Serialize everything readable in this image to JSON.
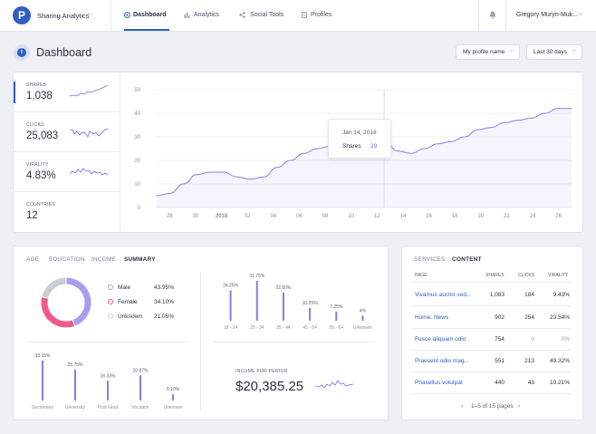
{
  "topbar": {
    "app_name": "Sharing Analytics",
    "nav": [
      {
        "label": "Dashboard",
        "active": true
      },
      {
        "label": "Analytics",
        "active": false
      },
      {
        "label": "Social Tools",
        "active": false
      },
      {
        "label": "Profiles",
        "active": false
      }
    ],
    "user_name": "Gregory Muryn-Muk..."
  },
  "header": {
    "title": "Dashboard",
    "profile_select": "My profile name",
    "range_select": "Last 30 days"
  },
  "stats": [
    {
      "label": "SHARES",
      "value": "1,038"
    },
    {
      "label": "CLICKS",
      "value": "25,083"
    },
    {
      "label": "VIRALITY",
      "value": "4.83%"
    },
    {
      "label": "COUNTRIES",
      "value": "12"
    }
  ],
  "chart_data": [
    {
      "type": "area",
      "series": [
        {
          "name": "Shares",
          "values": [
            5,
            6,
            10,
            14,
            15,
            15,
            13,
            12,
            13,
            17,
            20,
            23,
            25,
            26,
            28,
            24,
            25,
            29,
            24,
            23,
            25,
            27,
            28,
            30,
            33,
            34,
            36,
            37,
            38,
            40,
            42,
            42
          ]
        }
      ],
      "ylim": [
        0,
        50
      ],
      "yticks": [
        "0",
        "10",
        "20",
        "30",
        "40",
        "50"
      ],
      "xticks": [
        "28",
        "30",
        "2018",
        "02",
        "04",
        "06",
        "08",
        "10",
        "12",
        "14",
        "16",
        "18",
        "20",
        "22",
        "24",
        "26"
      ],
      "tooltip": {
        "date": "Jan 14, 2018",
        "label": "Shares",
        "value": "29"
      }
    },
    {
      "type": "pie",
      "title": "",
      "labels": [
        "Male",
        "Female",
        "Unknown"
      ],
      "values": [
        43.95,
        34.1,
        21.05
      ],
      "pct_labels": [
        "43.95%",
        "34.10%",
        "21.05%"
      ],
      "colors": [
        "#a99df0",
        "#ee5a8c",
        "#c9cdd6"
      ]
    },
    {
      "type": "bar",
      "categories": [
        "18 - 24",
        "25 - 34",
        "35 - 44",
        "45 - 54",
        "55 - 64",
        "Unknown"
      ],
      "values": [
        24.25,
        31.75,
        22.5,
        10.25,
        7.25,
        4
      ],
      "labels": [
        "24.25%",
        "31.75%",
        "22.50%",
        "10.25%",
        "7.25%",
        "4%"
      ]
    },
    {
      "type": "bar",
      "categories": [
        "Secondary",
        "University",
        "Post Grad",
        "Vocation",
        "Unknown"
      ],
      "values": [
        33.15,
        25.75,
        16.33,
        20.87,
        5.1
      ],
      "labels": [
        "33.15%",
        "25.75%",
        "16.33%",
        "20.87%",
        "5.10%"
      ]
    }
  ],
  "demographics": {
    "tabs": [
      {
        "label": "AGE",
        "active": false
      },
      {
        "label": "EDUCATION",
        "active": false
      },
      {
        "label": "INCOME",
        "active": false
      },
      {
        "label": "SUMMARY",
        "active": true
      }
    ],
    "income_label": "INCOME FOR PERIOD",
    "income_value": "$20,385.25"
  },
  "table": {
    "tabs": [
      {
        "label": "SERVICES",
        "active": false
      },
      {
        "label": "CONTENT",
        "active": true
      }
    ],
    "columns": [
      "PAGE",
      "SHARES",
      "CLICKS",
      "VIRALITY"
    ],
    "rows": [
      {
        "page": "Vivamus auctor sed...",
        "shares": "1,083",
        "clicks": "184",
        "virality": "9.43%"
      },
      {
        "page": "Home: News",
        "shares": "902",
        "clicks": "254",
        "virality": "23.54%"
      },
      {
        "page": "Fusce aliquam odio",
        "shares": "754",
        "clicks": "0",
        "virality": "0%"
      },
      {
        "page": "Praesent odio mag...",
        "shares": "551",
        "clicks": "213",
        "virality": "49.32%"
      },
      {
        "page": "Phasellus volutpat",
        "shares": "440",
        "clicks": "43",
        "virality": "10.21%"
      }
    ],
    "pagination": "1–5 of 15 pages"
  },
  "colors": {
    "accent": "#2f5fc4",
    "series": "#7c6be0"
  }
}
